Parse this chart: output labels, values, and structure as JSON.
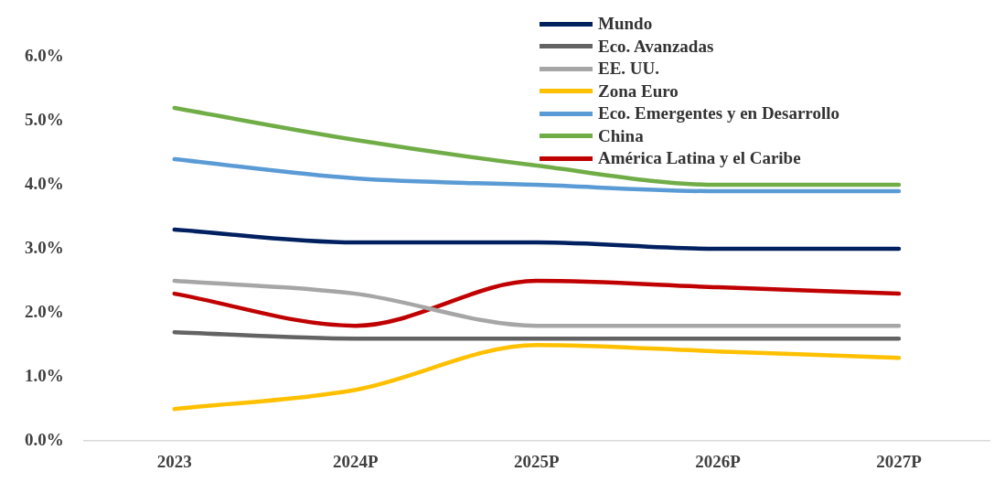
{
  "chart_data": {
    "type": "line",
    "categories": [
      "2023",
      "2024P",
      "2025P",
      "2026P",
      "2027P"
    ],
    "series": [
      {
        "name": "Mundo",
        "color": "#002060",
        "values": [
          3.3,
          3.1,
          3.1,
          3.0,
          3.0
        ]
      },
      {
        "name": "Eco. Avanzadas",
        "color": "#636363",
        "values": [
          1.7,
          1.6,
          1.6,
          1.6,
          1.6
        ]
      },
      {
        "name": "EE. UU.",
        "color": "#a6a6a6",
        "values": [
          2.5,
          2.3,
          1.8,
          1.8,
          1.8
        ]
      },
      {
        "name": "Zona Euro",
        "color": "#ffc000",
        "values": [
          0.5,
          0.8,
          1.5,
          1.4,
          1.3
        ]
      },
      {
        "name": "Eco. Emergentes y en Desarrollo",
        "color": "#5b9bd5",
        "values": [
          4.4,
          4.1,
          4.0,
          3.9,
          3.9
        ]
      },
      {
        "name": "China",
        "color": "#70ad47",
        "values": [
          5.2,
          4.7,
          4.3,
          4.0,
          4.0
        ]
      },
      {
        "name": "América Latina y el Caribe",
        "color": "#c00000",
        "values": [
          2.3,
          1.8,
          2.5,
          2.4,
          2.3
        ]
      }
    ],
    "ylim": [
      0,
      6
    ],
    "yticks": [
      {
        "value": 0,
        "label": "0.0%"
      },
      {
        "value": 1,
        "label": "1.0%"
      },
      {
        "value": 2,
        "label": "2.0%"
      },
      {
        "value": 3,
        "label": "3.0%"
      },
      {
        "value": 4,
        "label": "4.0%"
      },
      {
        "value": 5,
        "label": "5.0%"
      },
      {
        "value": 6,
        "label": "6.0%"
      }
    ],
    "grid": false,
    "legend": "top",
    "marker": "none",
    "line_style": "solid"
  }
}
